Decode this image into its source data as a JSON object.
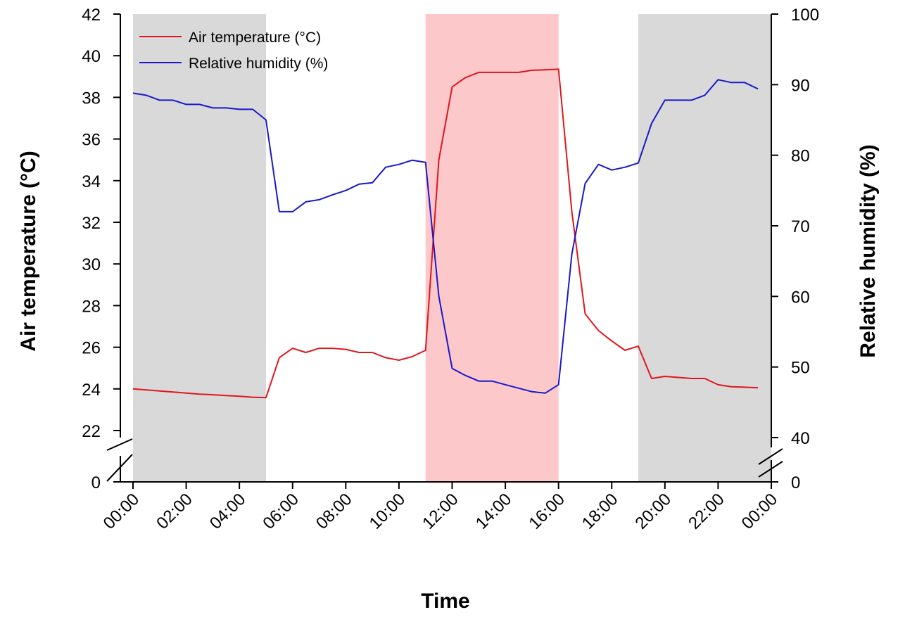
{
  "chart_data": {
    "type": "line",
    "title": "",
    "xlabel": "Time",
    "ylabel": "Air temperature (°C)",
    "y2label": "Relative humidity (%)",
    "x_ticks": [
      "00:00",
      "02:00",
      "04:00",
      "06:00",
      "08:00",
      "10:00",
      "12:00",
      "14:00",
      "16:00",
      "18:00",
      "20:00",
      "22:00",
      "00:00"
    ],
    "xlim_hours": [
      0,
      24
    ],
    "ylim": [
      22,
      42
    ],
    "y_ticks": [
      22,
      24,
      26,
      28,
      30,
      32,
      34,
      36,
      38,
      40,
      42
    ],
    "y_break_tick": 0,
    "y2lim": [
      40,
      100
    ],
    "y2_ticks": [
      40,
      50,
      60,
      70,
      80,
      90,
      100
    ],
    "y2_break_tick": 0,
    "grid": false,
    "legend_position": "top-left",
    "shaded_regions": [
      {
        "start_hour": 0,
        "end_hour": 5,
        "color": "#d9d9d9"
      },
      {
        "start_hour": 11,
        "end_hour": 16,
        "color": "#fcc8ca"
      },
      {
        "start_hour": 19,
        "end_hour": 24,
        "color": "#d9d9d9"
      }
    ],
    "series": [
      {
        "name": "Air temperature (°C)",
        "axis": "left",
        "color": "#e0161d",
        "x_hours": [
          0,
          0.5,
          1,
          1.5,
          2,
          2.5,
          3,
          3.5,
          4,
          4.5,
          5,
          5.5,
          6,
          6.5,
          7,
          7.5,
          8,
          8.5,
          9,
          9.5,
          10,
          10.5,
          11,
          11.5,
          12,
          12.5,
          13,
          13.5,
          14,
          14.5,
          15,
          15.5,
          16,
          16.5,
          17,
          17.5,
          18,
          18.5,
          19,
          19.5,
          20,
          20.5,
          21,
          21.5,
          22,
          22.5,
          23,
          23.5
        ],
        "values": [
          24.0,
          23.95,
          23.9,
          23.85,
          23.8,
          23.75,
          23.72,
          23.68,
          23.65,
          23.6,
          23.58,
          25.5,
          25.95,
          25.75,
          25.95,
          25.95,
          25.9,
          25.75,
          25.75,
          25.5,
          25.38,
          25.55,
          25.85,
          35.0,
          38.5,
          38.95,
          39.2,
          39.2,
          39.2,
          39.2,
          39.3,
          39.32,
          39.35,
          32.5,
          27.6,
          26.8,
          26.3,
          25.85,
          26.05,
          24.5,
          24.6,
          24.55,
          24.5,
          24.5,
          24.2,
          24.1,
          24.08,
          24.05
        ]
      },
      {
        "name": "Relative humidity (%)",
        "axis": "right",
        "color": "#1919c8",
        "x_hours": [
          0,
          0.5,
          1,
          1.5,
          2,
          2.5,
          3,
          3.5,
          4,
          4.5,
          5,
          5.5,
          6,
          6.5,
          7,
          7.5,
          8,
          8.5,
          9,
          9.5,
          10,
          10.5,
          11,
          11.5,
          12,
          12.5,
          13,
          13.5,
          14,
          14.5,
          15,
          15.5,
          16,
          16.5,
          17,
          17.5,
          18,
          18.5,
          19,
          19.5,
          20,
          20.5,
          21,
          21.5,
          22,
          22.5,
          23,
          23.5
        ],
        "values": [
          88.8,
          88.5,
          87.8,
          87.8,
          87.2,
          87.2,
          86.7,
          86.7,
          86.5,
          86.5,
          85.0,
          72.0,
          72.0,
          73.4,
          73.7,
          74.4,
          75.0,
          75.9,
          76.1,
          78.3,
          78.7,
          79.3,
          79.0,
          60.0,
          49.8,
          48.8,
          48.0,
          48.0,
          47.5,
          47.0,
          46.5,
          46.3,
          47.5,
          66.0,
          76.0,
          78.7,
          77.9,
          78.3,
          78.9,
          84.5,
          87.8,
          87.8,
          87.8,
          88.5,
          90.7,
          90.3,
          90.3,
          89.4
        ]
      }
    ]
  }
}
